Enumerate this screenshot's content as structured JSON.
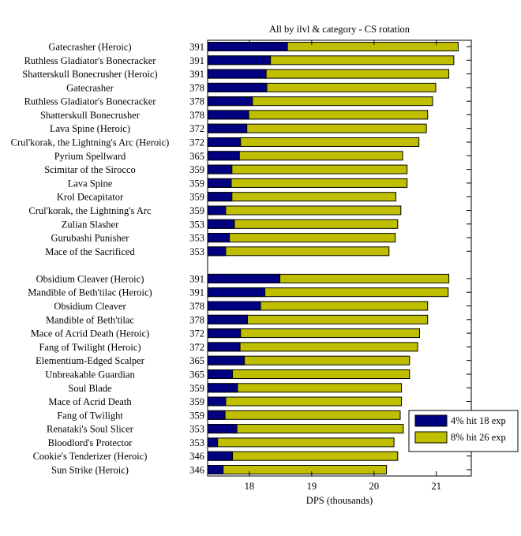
{
  "chart_data": {
    "type": "bar",
    "orientation": "horizontal",
    "stacked": "overlay",
    "title": "All by ilvl & category - CS rotation",
    "xlabel": "DPS (thousands)",
    "ylabel": "",
    "xlim": [
      17.33,
      21.56
    ],
    "xticks": [
      "18",
      "19",
      "20",
      "21"
    ],
    "grid": false,
    "legend_position": "bottom-right",
    "colors": {
      "series1": "#000080",
      "series2": "#bfbf00",
      "axis": "#000000"
    },
    "groups": [
      {
        "categories": [
          "Gatecrasher (Heroic)",
          "Ruthless Gladiator's Bonecracker",
          "Shatterskull Bonecrusher (Heroic)",
          "Gatecrasher",
          "Ruthless Gladiator's Bonecracker",
          "Shatterskull Bonecrusher",
          "Lava Spine (Heroic)",
          "Crul'korak, the Lightning's Arc (Heroic)",
          "Pyrium Spellward",
          "Scimitar of the Sirocco",
          "Lava Spine",
          "Krol Decapitator",
          "Crul'korak, the Lightning's Arc",
          "Zulian Slasher",
          "Gurubashi Punisher",
          "Mace of the Sacrificed"
        ],
        "ilvl": [
          "391",
          "391",
          "391",
          "378",
          "378",
          "378",
          "372",
          "372",
          "365",
          "359",
          "359",
          "359",
          "359",
          "353",
          "353",
          "353"
        ],
        "series": [
          {
            "name": "4% hit 18 exp",
            "values": [
              18.61,
              18.34,
              18.27,
              18.28,
              18.05,
              17.99,
              17.96,
              17.86,
              17.84,
              17.72,
              17.71,
              17.72,
              17.62,
              17.76,
              17.68,
              17.62
            ]
          },
          {
            "name": "8% hit 26 exp",
            "values": [
              21.35,
              21.28,
              21.2,
              20.99,
              20.94,
              20.86,
              20.84,
              20.72,
              20.46,
              20.53,
              20.53,
              20.35,
              20.43,
              20.38,
              20.34,
              20.24
            ]
          }
        ]
      },
      {
        "categories": [
          "Obsidium Cleaver (Heroic)",
          "Mandible of Beth'tilac (Heroic)",
          "Obsidium Cleaver",
          "Mandible of Beth'tilac",
          "Mace of Acrid Death (Heroic)",
          "Fang of Twilight (Heroic)",
          "Elementium-Edged Scalper",
          "Unbreakable Guardian",
          "Soul Blade",
          "Mace of Acrid Death",
          "Fang of Twilight",
          "Renataki's Soul Slicer",
          "Bloodlord's Protector",
          "Cookie's Tenderizer (Heroic)",
          "Sun Strike (Heroic)"
        ],
        "ilvl": [
          "391",
          "391",
          "378",
          "378",
          "372",
          "372",
          "365",
          "365",
          "359",
          "359",
          "359",
          "353",
          "353",
          "346",
          "346"
        ],
        "series": [
          {
            "name": "4% hit 18 exp",
            "values": [
              18.49,
              18.25,
              18.18,
              17.97,
              17.86,
              17.85,
              17.92,
              17.73,
              17.81,
              17.62,
              17.61,
              17.8,
              17.49,
              17.73,
              17.58
            ]
          },
          {
            "name": "8% hit 26 exp",
            "values": [
              21.2,
              21.19,
              20.86,
              20.86,
              20.73,
              20.7,
              20.57,
              20.57,
              20.44,
              20.44,
              20.42,
              20.47,
              20.32,
              20.38,
              20.2
            ]
          }
        ]
      }
    ],
    "legend": [
      "4% hit 18 exp",
      "8% hit 26 exp"
    ]
  }
}
